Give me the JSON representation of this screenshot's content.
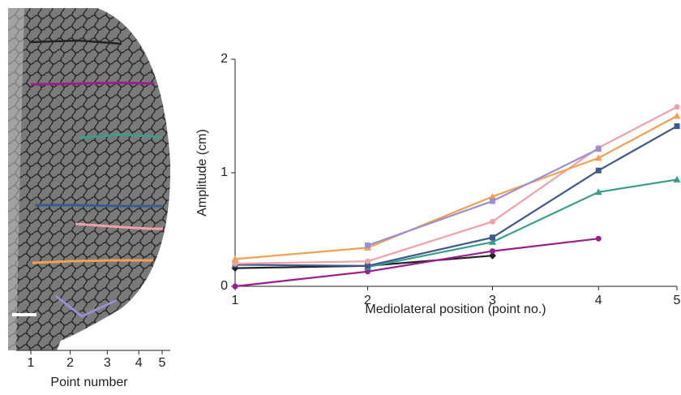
{
  "chart_data": [
    {
      "type": "image",
      "xlabel": "Point number",
      "xlim": [
        1,
        5
      ],
      "xticks": [
        {
          "value": 1,
          "label": "1"
        },
        {
          "value": 2.2,
          "label": "2"
        },
        {
          "value": 3.33,
          "label": "3"
        },
        {
          "value": 4.29,
          "label": "4"
        },
        {
          "value": 5,
          "label": "5"
        }
      ]
    },
    {
      "type": "line",
      "xlabel": "Mediolateral position (point no.)",
      "ylabel": "Amplitude (cm)",
      "x": [
        1,
        2.2,
        3.33,
        4.29,
        5
      ],
      "xlim": [
        1,
        5
      ],
      "ylim": [
        0,
        2
      ],
      "xticks": [
        {
          "value": 1,
          "label": "1"
        },
        {
          "value": 2.2,
          "label": "2"
        },
        {
          "value": 3.33,
          "label": "3"
        },
        {
          "value": 4.29,
          "label": "4"
        },
        {
          "value": 5,
          "label": "5"
        }
      ],
      "yticks": [
        0,
        1,
        2
      ],
      "series": [
        {
          "color": "#222222",
          "marker": "diamond",
          "values": [
            0.16,
            0.18,
            0.27,
            null,
            null
          ]
        },
        {
          "color": "#9b1f8a",
          "marker": "circle",
          "values": [
            0,
            0.13,
            0.31,
            0.42,
            null
          ]
        },
        {
          "color": "#3a9e8a",
          "marker": "triangle",
          "values": [
            null,
            0.17,
            0.39,
            0.83,
            0.94
          ]
        },
        {
          "color": "#3d5a8c",
          "marker": "square",
          "values": [
            0.19,
            0.18,
            0.43,
            1.02,
            1.41
          ]
        },
        {
          "color": "#f0a0a8",
          "marker": "circle",
          "values": [
            0.2,
            0.22,
            0.57,
            1.22,
            1.58
          ]
        },
        {
          "color": "#f5a050",
          "marker": "triangle",
          "values": [
            0.24,
            0.34,
            0.79,
            1.13,
            1.5
          ]
        },
        {
          "color": "#9b8fd0",
          "marker": "square",
          "values": [
            null,
            0.36,
            0.75,
            1.21,
            null
          ]
        }
      ]
    }
  ]
}
